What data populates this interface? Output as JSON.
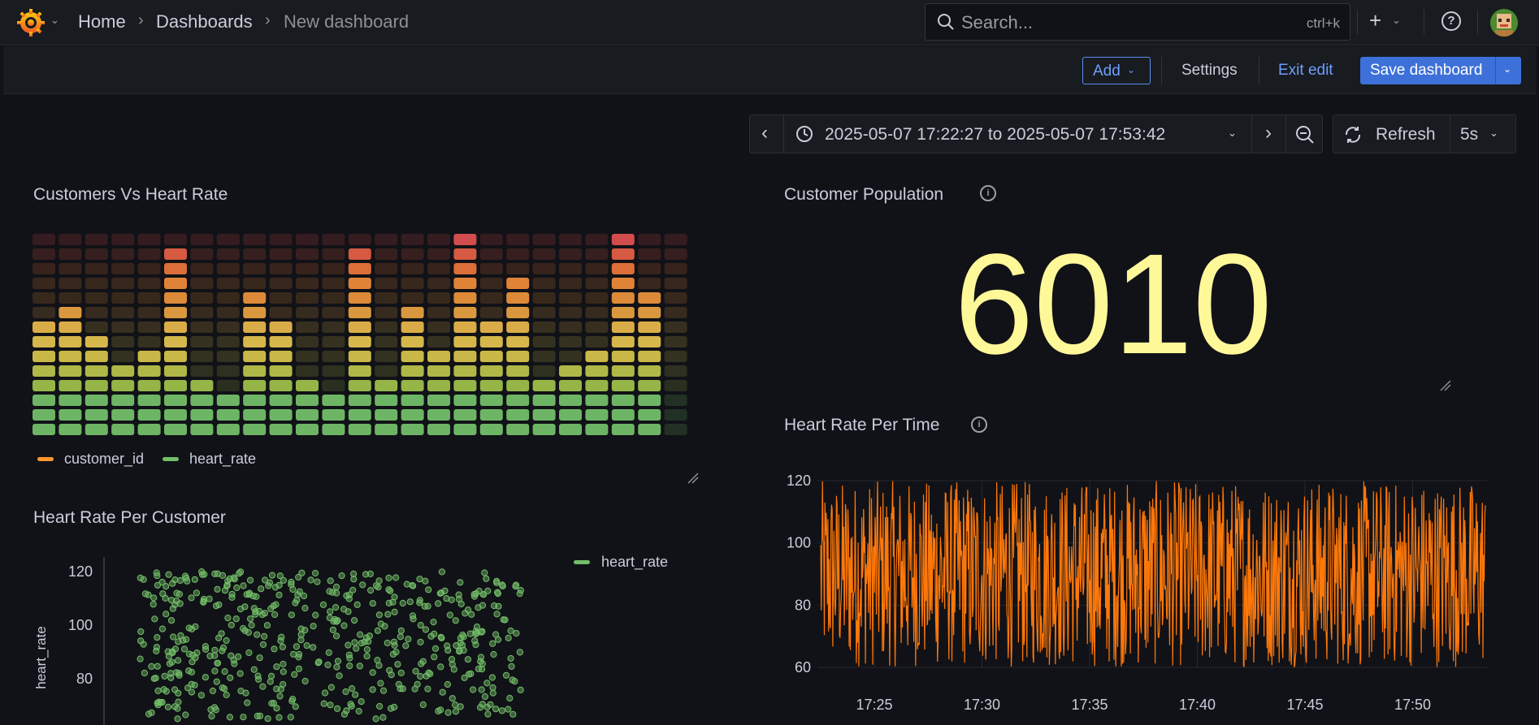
{
  "topbar": {
    "breadcrumb": {
      "home": "Home",
      "dashboards": "Dashboards",
      "current": "New dashboard"
    },
    "search": {
      "placeholder": "Search...",
      "shortcut": "ctrl+k"
    }
  },
  "toolbar": {
    "add": "Add",
    "settings": "Settings",
    "exit_edit": "Exit edit",
    "save": "Save dashboard"
  },
  "timerange": {
    "label": "2025-05-07 17:22:27 to 2025-05-07 17:53:42",
    "refresh": "Refresh",
    "interval": "5s"
  },
  "panels": {
    "customers_vs_heart_rate": {
      "title": "Customers Vs Heart Rate",
      "legend": [
        "customer_id",
        "heart_rate"
      ]
    },
    "customer_population": {
      "title": "Customer Population",
      "value": "6010"
    },
    "heart_rate_per_time": {
      "title": "Heart Rate Per Time"
    },
    "heart_rate_per_customer": {
      "title": "Heart Rate Per Customer",
      "legend": "heart_rate"
    }
  },
  "colors": {
    "orange": "#ff780a",
    "green": "#73bf69",
    "yellow": "#fff899",
    "accent": "#3d71d9"
  },
  "chart_data": [
    {
      "type": "bar",
      "title": "Customers Vs Heart Rate",
      "categories_count": 25,
      "values": [
        8,
        9,
        7,
        5,
        6,
        13,
        4,
        3,
        10,
        8,
        4,
        3,
        13,
        4,
        9,
        6,
        14,
        8,
        11,
        4,
        5,
        6,
        14,
        10,
        0
      ],
      "levels": 14,
      "legend": [
        "customer_id",
        "heart_rate"
      ]
    },
    {
      "type": "line",
      "title": "Heart Rate Per Time",
      "ylim": [
        60,
        120
      ],
      "yticks": [
        60,
        80,
        100,
        120
      ],
      "xticks": [
        "17:25",
        "17:30",
        "17:35",
        "17:40",
        "17:45",
        "17:50"
      ],
      "series": [
        {
          "name": "heart_rate",
          "color": "#ff780a"
        }
      ]
    },
    {
      "type": "scatter",
      "title": "Heart Rate Per Customer",
      "ylabel": "heart_rate",
      "ylim": [
        60,
        120
      ],
      "yticks": [
        80,
        100,
        120
      ],
      "series": [
        {
          "name": "heart_rate",
          "color": "#73bf69"
        }
      ]
    }
  ]
}
